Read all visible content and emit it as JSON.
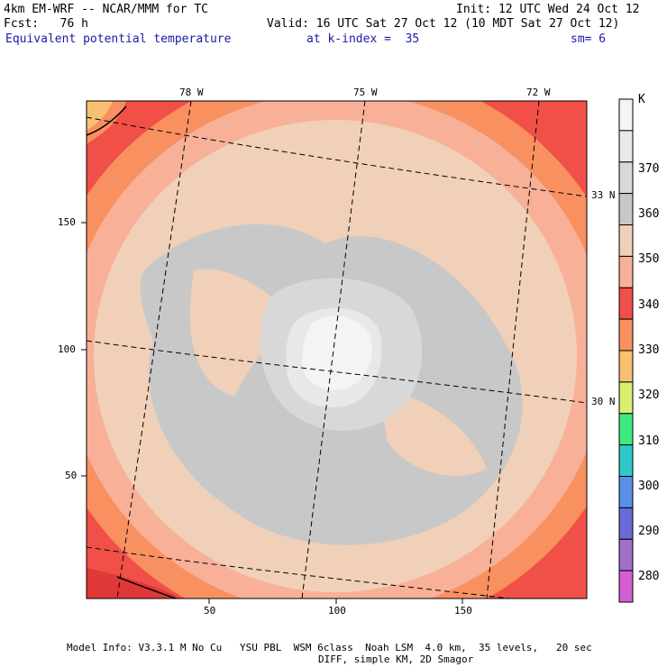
{
  "header": {
    "model": "4km EM-WRF -- NCAR/MMM for TC",
    "init": "Init: 12 UTC Wed 24 Oct 12",
    "fcst": "Fcst:   76 h",
    "valid": "Valid: 16 UTC Sat 27 Oct 12 (10 MDT Sat 27 Oct 12)",
    "field": "Equivalent potential temperature",
    "level": "at k-index =  35",
    "smooth": "sm= 6"
  },
  "map": {
    "lon_labels": [
      "78 W",
      "75 W",
      "72 W"
    ],
    "lat_labels": [
      "33 N",
      "30 N"
    ],
    "x_ticks": [
      "50",
      "100",
      "150"
    ],
    "y_ticks": [
      "150",
      "100",
      "50"
    ]
  },
  "colorbar": {
    "unit": "K",
    "levels": [
      "370",
      "360",
      "350",
      "340",
      "330",
      "320",
      "310",
      "300",
      "290",
      "280"
    ],
    "colors": {
      "below_280": "#d45fd4",
      "280": "#a070c8",
      "290": "#6a6ad8",
      "300": "#5a90e8",
      "310": "#30c8c8",
      "320": "#40e880",
      "330": "#d8f070",
      "340": "#f8c070",
      "350": "#f89060",
      "360": "#f05048",
      "370": "#f8b098",
      "c380": "#f0d0b8",
      "c390": "#c8c8c8",
      "c400": "#d8d8d8",
      "c410": "#e8e8e8",
      "c420": "#f4f4f4"
    }
  },
  "footer": {
    "line1": "Model Info: V3.3.1 M No Cu   YSU PBL  WSM 6class  Noah LSM  4.0 km,  35 levels,   20 sec",
    "line2": "DIFF, simple KM, 2D Smagor"
  }
}
